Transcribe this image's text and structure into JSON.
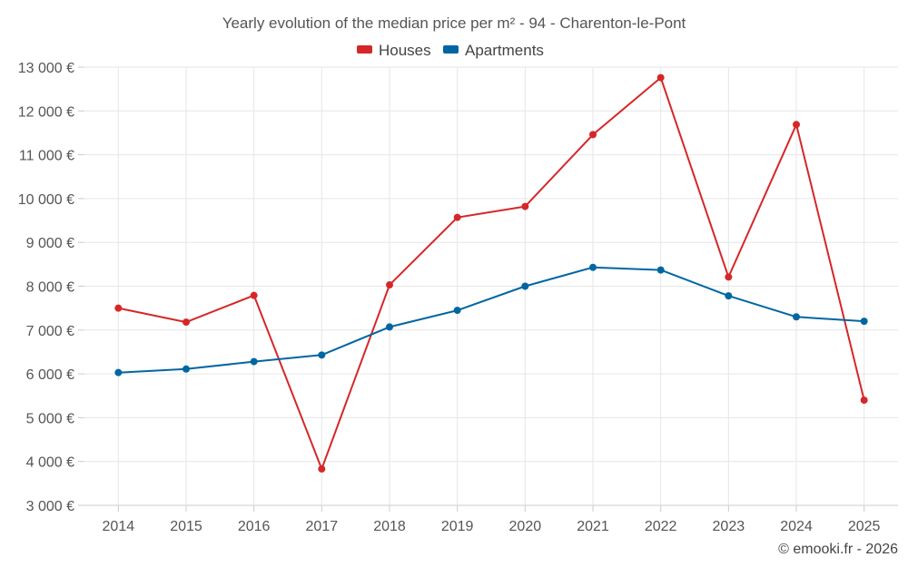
{
  "chart_data": {
    "type": "line",
    "title": "Yearly evolution of the median price per m² - 94 - Charenton-le-Pont",
    "categories": [
      "2014",
      "2015",
      "2016",
      "2017",
      "2018",
      "2019",
      "2020",
      "2021",
      "2022",
      "2023",
      "2024",
      "2025"
    ],
    "series": [
      {
        "name": "Houses",
        "color": "#d62728",
        "values": [
          7500,
          7180,
          7790,
          3830,
          8030,
          9570,
          9820,
          11460,
          12760,
          8210,
          11690,
          5400
        ]
      },
      {
        "name": "Apartments",
        "color": "#0066a1",
        "values": [
          6030,
          6110,
          6280,
          6430,
          7070,
          7450,
          8000,
          8430,
          8370,
          7780,
          7300,
          7200
        ]
      }
    ],
    "ylim": [
      3000,
      13000
    ],
    "yticks": [
      3000,
      4000,
      5000,
      6000,
      7000,
      8000,
      9000,
      10000,
      11000,
      12000,
      13000
    ],
    "ytick_labels": [
      "3 000 €",
      "4 000 €",
      "5 000 €",
      "6 000 €",
      "7 000 €",
      "8 000 €",
      "9 000 €",
      "10 000 €",
      "11 000 €",
      "12 000 €",
      "13 000 €"
    ],
    "xlabel": "",
    "ylabel": "",
    "legend_position": "top-center",
    "grid": true
  },
  "credit": "© emooki.fr - 2026"
}
